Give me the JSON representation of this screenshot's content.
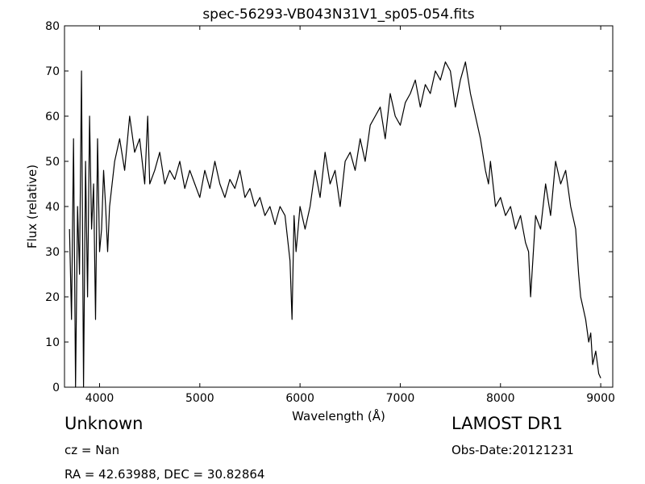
{
  "chart_data": {
    "type": "line",
    "title": "spec-56293-VB043N31V1_sp05-054.fits",
    "xlabel": "Wavelength (Å)",
    "ylabel": "Flux (relative)",
    "xlim": [
      3650,
      9120
    ],
    "ylim": [
      0,
      80
    ],
    "xticks": [
      4000,
      5000,
      6000,
      7000,
      8000,
      9000
    ],
    "yticks": [
      0,
      10,
      20,
      30,
      40,
      50,
      60,
      70,
      80
    ],
    "grid": false,
    "series": [
      {
        "color": "#000000",
        "x": [
          3700,
          3720,
          3740,
          3760,
          3780,
          3800,
          3820,
          3840,
          3860,
          3880,
          3900,
          3920,
          3940,
          3960,
          3980,
          4000,
          4020,
          4040,
          4060,
          4080,
          4100,
          4150,
          4200,
          4250,
          4300,
          4350,
          4400,
          4450,
          4480,
          4500,
          4550,
          4600,
          4650,
          4700,
          4750,
          4800,
          4850,
          4900,
          4950,
          5000,
          5050,
          5100,
          5150,
          5200,
          5250,
          5300,
          5350,
          5400,
          5450,
          5500,
          5550,
          5600,
          5650,
          5700,
          5750,
          5800,
          5850,
          5900,
          5920,
          5940,
          5960,
          5980,
          6000,
          6050,
          6100,
          6150,
          6200,
          6250,
          6300,
          6350,
          6400,
          6450,
          6500,
          6550,
          6600,
          6650,
          6700,
          6750,
          6800,
          6850,
          6900,
          6950,
          7000,
          7050,
          7100,
          7150,
          7200,
          7250,
          7300,
          7350,
          7400,
          7450,
          7500,
          7550,
          7600,
          7650,
          7700,
          7750,
          7800,
          7850,
          7880,
          7900,
          7950,
          8000,
          8050,
          8100,
          8150,
          8200,
          8250,
          8280,
          8300,
          8350,
          8400,
          8450,
          8500,
          8550,
          8600,
          8650,
          8700,
          8750,
          8780,
          8800,
          8820,
          8850,
          8880,
          8900,
          8920,
          8950,
          8980,
          9000
        ],
        "y": [
          35,
          15,
          55,
          0,
          40,
          25,
          70,
          0,
          50,
          20,
          60,
          35,
          45,
          15,
          55,
          30,
          35,
          48,
          40,
          30,
          40,
          50,
          55,
          48,
          60,
          52,
          55,
          45,
          60,
          45,
          48,
          52,
          45,
          48,
          46,
          50,
          44,
          48,
          45,
          42,
          48,
          44,
          50,
          45,
          42,
          46,
          44,
          48,
          42,
          44,
          40,
          42,
          38,
          40,
          36,
          40,
          38,
          28,
          15,
          38,
          30,
          35,
          40,
          35,
          40,
          48,
          42,
          52,
          45,
          48,
          40,
          50,
          52,
          48,
          55,
          50,
          58,
          60,
          62,
          55,
          65,
          60,
          58,
          63,
          65,
          68,
          62,
          67,
          65,
          70,
          68,
          72,
          70,
          62,
          68,
          72,
          65,
          60,
          55,
          48,
          45,
          50,
          40,
          42,
          38,
          40,
          35,
          38,
          32,
          30,
          20,
          38,
          35,
          45,
          38,
          50,
          45,
          48,
          40,
          35,
          25,
          20,
          18,
          15,
          10,
          12,
          5,
          8,
          3,
          2
        ]
      }
    ]
  },
  "info": {
    "object_class": "Unknown",
    "survey": "LAMOST DR1",
    "redshift": "cz = Nan",
    "obs_date": "Obs-Date:20121231",
    "coordinates": "RA = 42.63988, DEC = 30.82864"
  }
}
